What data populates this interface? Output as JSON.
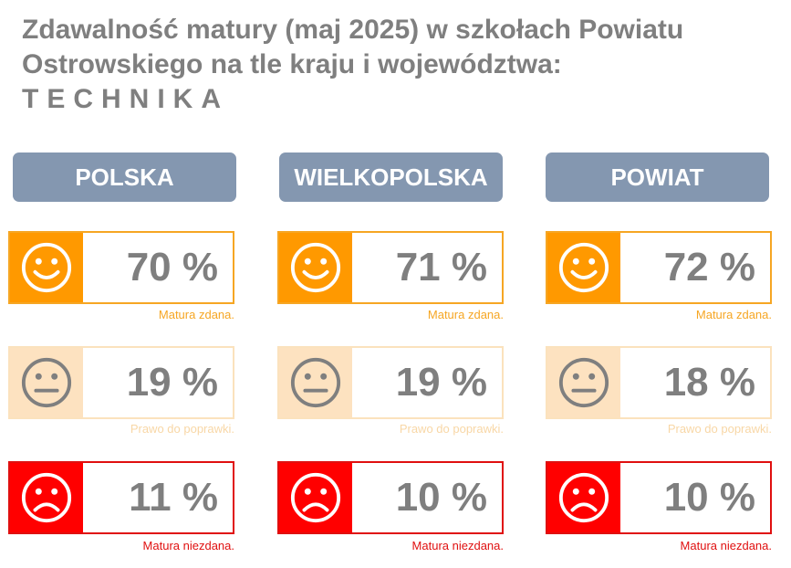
{
  "title": {
    "line1": "Zdawalność matury (maj 2025) w  szkołach Powiatu",
    "line2": "Ostrowskiego na tle kraju i województwa:",
    "line3": "TECHNIKA"
  },
  "colors": {
    "header_bg": "#8497b0",
    "pass": "#ff9900",
    "retake": "#fde2c0",
    "fail": "#ff0000",
    "value_text": "#7f7f7f"
  },
  "columns": [
    {
      "header": "POLSKA",
      "rows": [
        {
          "icon": "smile-face-icon",
          "value": "70 %",
          "caption": "Matura zdana."
        },
        {
          "icon": "neutral-face-icon",
          "value": "19 %",
          "caption": "Prawo do poprawki."
        },
        {
          "icon": "sad-face-icon",
          "value": "11 %",
          "caption": "Matura niezdana."
        }
      ]
    },
    {
      "header": "WIELKOPOLSKA",
      "rows": [
        {
          "icon": "smile-face-icon",
          "value": "71 %",
          "caption": "Matura zdana."
        },
        {
          "icon": "neutral-face-icon",
          "value": "19 %",
          "caption": "Prawo do poprawki."
        },
        {
          "icon": "sad-face-icon",
          "value": "10 %",
          "caption": "Matura niezdana."
        }
      ]
    },
    {
      "header": "POWIAT",
      "rows": [
        {
          "icon": "smile-face-icon",
          "value": "72 %",
          "caption": "Matura zdana."
        },
        {
          "icon": "neutral-face-icon",
          "value": "18 %",
          "caption": "Prawo do poprawki."
        },
        {
          "icon": "sad-face-icon",
          "value": "10 %",
          "caption": "Matura niezdana."
        }
      ]
    }
  ]
}
